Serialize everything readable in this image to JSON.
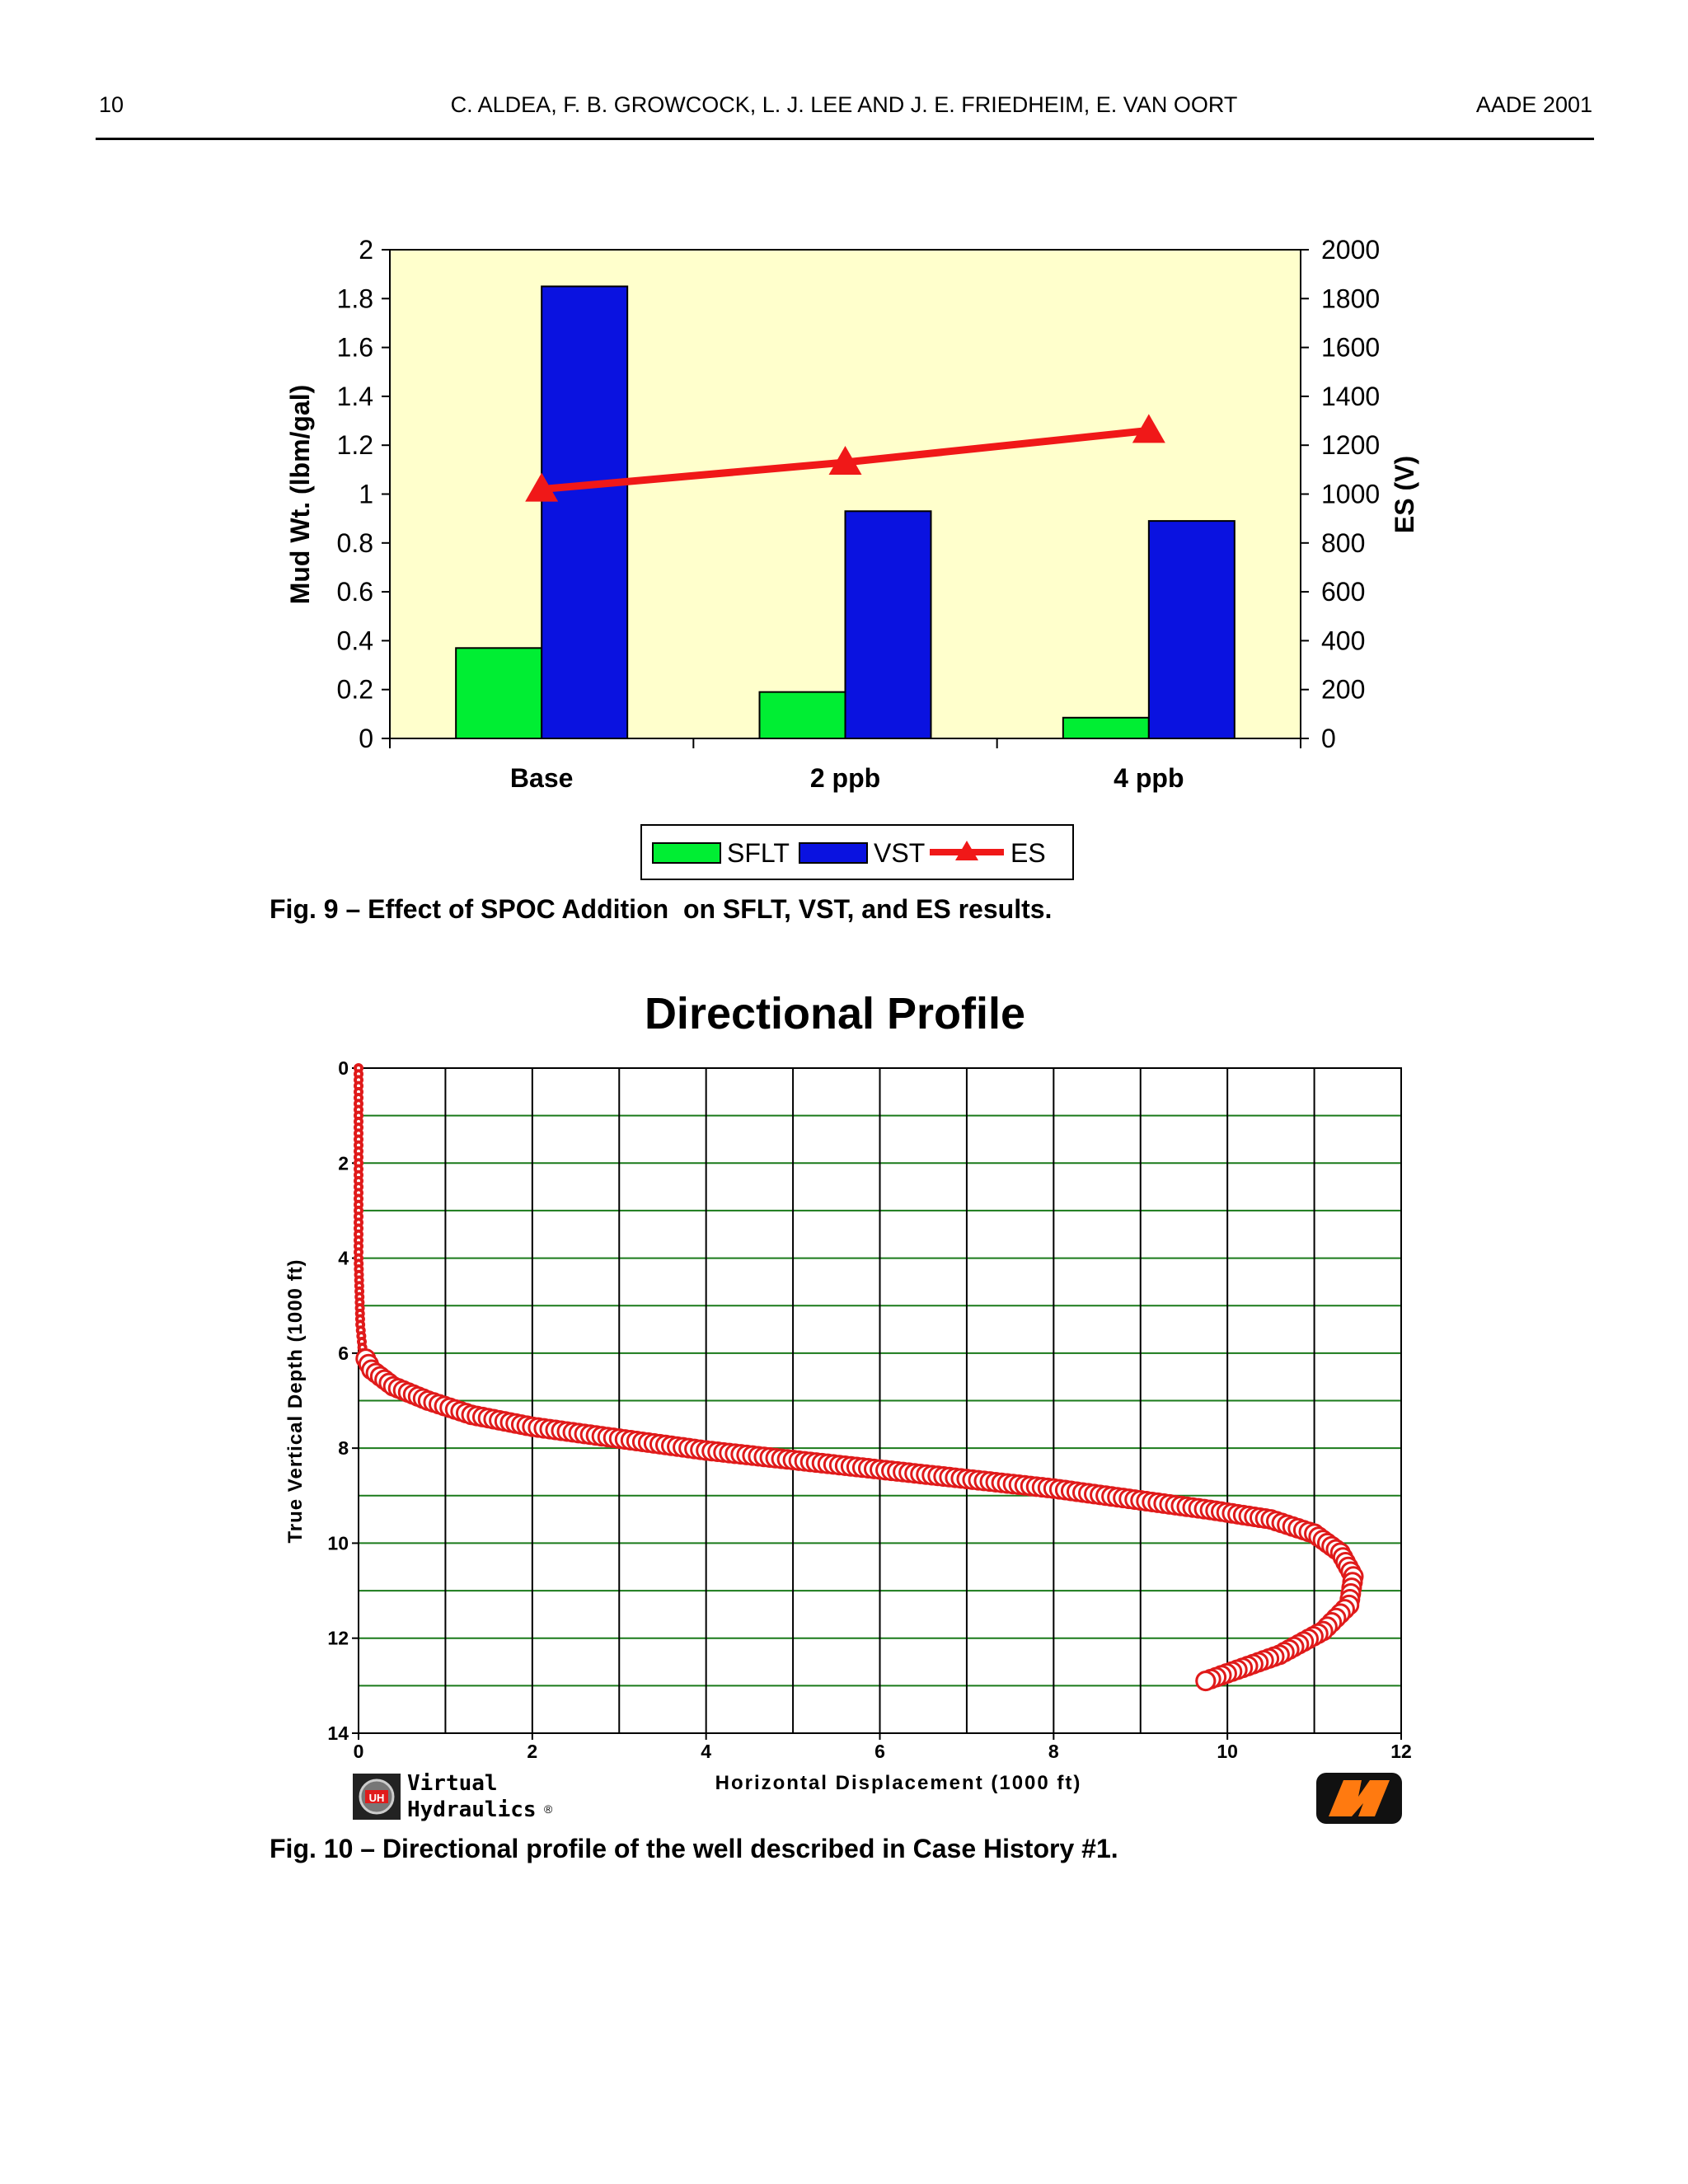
{
  "header": {
    "page_number": "10",
    "authors": "C. ALDEA, F. B. GROWCOCK, L. J.  LEE AND J. E. FRIEDHEIM, E. VAN OORT",
    "conference": "AADE 2001"
  },
  "fig9": {
    "caption": "Fig. 9 – Effect of SPOC Addition  on SFLT, VST, and ES results."
  },
  "fig10": {
    "caption": "Fig. 10 – Directional profile of the well described in Case History #1.",
    "logo_left": [
      "Virtual",
      "Hydraulics"
    ],
    "logo_left_badge": "UH",
    "logo_right": "MI"
  },
  "chart_data": [
    {
      "type": "bar",
      "title": "",
      "categories": [
        "Base",
        "2 ppb",
        "4 ppb"
      ],
      "ylabel": "Mud Wt. (lbm/gal)",
      "y2label": "ES (V)",
      "ylim": [
        0,
        2
      ],
      "y2lim": [
        0,
        2000
      ],
      "yticks": [
        "0",
        "0.2",
        "0.4",
        "0.6",
        "0.8",
        "1",
        "1.2",
        "1.4",
        "1.6",
        "1.8",
        "2"
      ],
      "y2ticks": [
        "0",
        "200",
        "400",
        "600",
        "800",
        "1000",
        "1200",
        "1400",
        "1600",
        "1800",
        "2000"
      ],
      "series": [
        {
          "name": "SFLT",
          "type": "bar",
          "axis": "left",
          "values": [
            0.37,
            0.19,
            0.085
          ],
          "color": "#00ee33"
        },
        {
          "name": "VST",
          "type": "bar",
          "axis": "left",
          "values": [
            1.85,
            0.93,
            0.89
          ],
          "color": "#0a12e0"
        },
        {
          "name": "ES",
          "type": "line",
          "axis": "right",
          "marker": "triangle",
          "values": [
            1020,
            1130,
            1260
          ],
          "color": "#f01818"
        }
      ],
      "plot_background": "#ffffcc",
      "legend_position": "bottom"
    },
    {
      "type": "scatter",
      "title": "Directional Profile",
      "xlabel": "Horizontal Displacement (1000 ft)",
      "ylabel": "True Vertical Depth (1000 ft)",
      "xlim": [
        0,
        12
      ],
      "ylim": [
        14,
        0
      ],
      "y_inverted": true,
      "xticks": [
        "0",
        "2",
        "4",
        "6",
        "8",
        "10",
        "12"
      ],
      "yticks": [
        "0",
        "2",
        "4",
        "6",
        "8",
        "10",
        "12",
        "14"
      ],
      "grid": true,
      "grid_color": "#1a7a1a",
      "marker_color": "#e01a1a",
      "trajectory": [
        [
          0,
          0
        ],
        [
          0,
          2
        ],
        [
          0,
          4
        ],
        [
          0.02,
          5.4
        ],
        [
          0.05,
          6.0
        ],
        [
          0.15,
          6.35
        ],
        [
          0.4,
          6.7
        ],
        [
          0.8,
          7.0
        ],
        [
          1.3,
          7.3
        ],
        [
          2.0,
          7.55
        ],
        [
          3.0,
          7.8
        ],
        [
          4.0,
          8.05
        ],
        [
          5.0,
          8.25
        ],
        [
          6.0,
          8.45
        ],
        [
          7.0,
          8.65
        ],
        [
          8.0,
          8.85
        ],
        [
          9.0,
          9.1
        ],
        [
          9.8,
          9.3
        ],
        [
          10.5,
          9.5
        ],
        [
          11.0,
          9.8
        ],
        [
          11.3,
          10.2
        ],
        [
          11.45,
          10.7
        ],
        [
          11.4,
          11.3
        ],
        [
          11.1,
          11.85
        ],
        [
          10.6,
          12.35
        ],
        [
          9.75,
          12.9
        ]
      ]
    }
  ]
}
